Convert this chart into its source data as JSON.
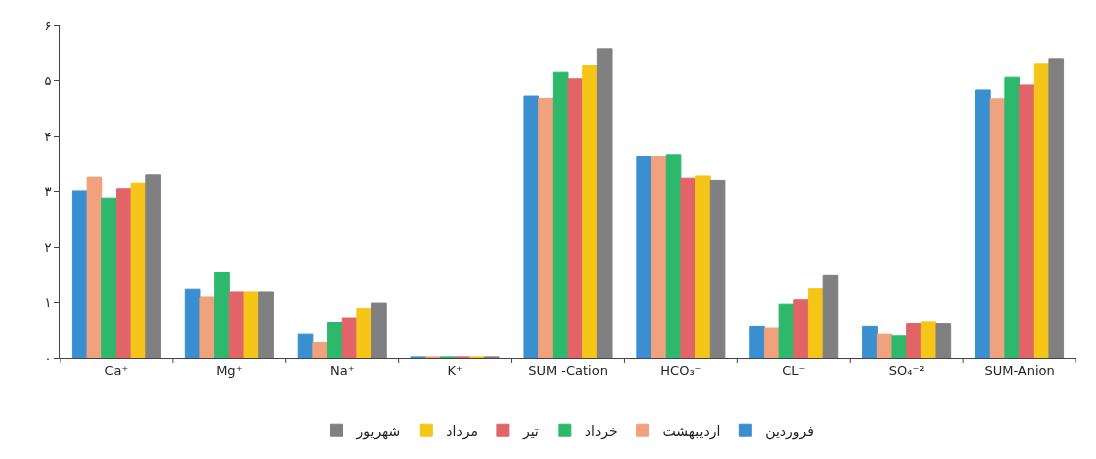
{
  "chart_data": {
    "type": "bar",
    "categories": [
      "Ca⁺",
      "Mg⁺",
      "Na⁺",
      "K⁺",
      "SUM -Cation",
      "HCO₃⁻",
      "CL⁻",
      "SO₄⁻²",
      "SUM-Anion"
    ],
    "series": [
      {
        "name": "فروردین",
        "color": "#3a8fd0",
        "values": [
          3.01,
          1.24,
          0.43,
          0.02,
          4.72,
          3.63,
          0.57,
          0.57,
          4.83
        ]
      },
      {
        "name": "اردیبهشت",
        "color": "#f0a27e",
        "values": [
          3.26,
          1.1,
          0.28,
          0.02,
          4.68,
          3.63,
          0.54,
          0.43,
          4.67
        ]
      },
      {
        "name": "خرداد",
        "color": "#2eb86b",
        "values": [
          2.88,
          1.54,
          0.64,
          0.02,
          5.15,
          3.66,
          0.97,
          0.4,
          5.06
        ]
      },
      {
        "name": "تیر",
        "color": "#e06468",
        "values": [
          3.05,
          1.19,
          0.72,
          0.02,
          5.03,
          3.24,
          1.05,
          0.62,
          4.92
        ]
      },
      {
        "name": "مرداد",
        "color": "#f5c518",
        "values": [
          3.15,
          1.19,
          0.89,
          0.02,
          5.27,
          3.28,
          1.25,
          0.65,
          5.3
        ]
      },
      {
        "name": "شهریور",
        "color": "#808080",
        "values": [
          3.3,
          1.19,
          0.99,
          0.02,
          5.57,
          3.2,
          1.49,
          0.62,
          5.39
        ]
      }
    ],
    "ylim": [
      0,
      6
    ],
    "yticks": [
      {
        "value": 0,
        "label": "۰"
      },
      {
        "value": 1,
        "label": "۱"
      },
      {
        "value": 2,
        "label": "۲"
      },
      {
        "value": 3,
        "label": "۳"
      },
      {
        "value": 4,
        "label": "۴"
      },
      {
        "value": 5,
        "label": "۵"
      },
      {
        "value": 6,
        "label": "۶"
      }
    ],
    "legend": "bottom"
  }
}
